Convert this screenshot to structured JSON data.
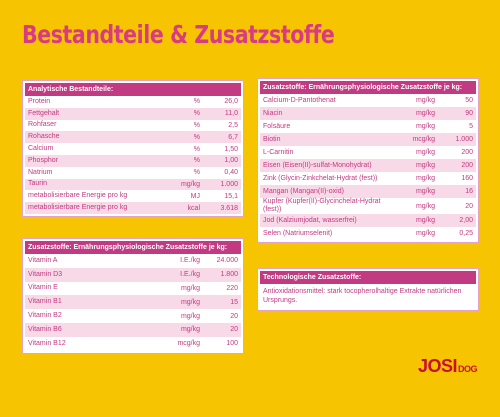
{
  "title": "Bestandteile & Zusatzstoffe",
  "tables": [
    {
      "header": "Analytische Bestandteile:",
      "rows": [
        [
          "Protein",
          "%",
          "26,0"
        ],
        [
          "Fettgehalt",
          "%",
          "11,0"
        ],
        [
          "Rohfaser",
          "%",
          "2,5"
        ],
        [
          "Rohasche",
          "%",
          "6,7"
        ],
        [
          "Calcium",
          "%",
          "1,50"
        ],
        [
          "Phosphor",
          "%",
          "1,00"
        ],
        [
          "Natrium",
          "%",
          "0,40"
        ],
        [
          "Taurin",
          "mg/kg",
          "1.000"
        ],
        [
          "metabolisierbare Energie pro kg",
          "MJ",
          "15,1"
        ],
        [
          "metabolisierbare Energie pro kg",
          "kcal",
          "3.618"
        ]
      ]
    },
    {
      "header": "Zusatzstoffe: Ernährungsphysiologische Zusatzstoffe je kg:",
      "rows": [
        [
          "Vitamin A",
          "I.E./kg",
          "24.000"
        ],
        [
          "Vitamin D3",
          "I.E./kg",
          "1.800"
        ],
        [
          "Vitamin E",
          "mg/kg",
          "220"
        ],
        [
          "Vitamin B1",
          "mg/kg",
          "15"
        ],
        [
          "Vitamin B2",
          "mg/kg",
          "20"
        ],
        [
          "Vitamin B6",
          "mg/kg",
          "20"
        ],
        [
          "Vitamin B12",
          "mcg/kg",
          "100"
        ]
      ]
    },
    {
      "header": "Zusatzstoffe: Ernährungsphysiologische Zusatzstoffe je kg:",
      "rows": [
        [
          "Calcium-D-Pantothenat",
          "mg/kg",
          "50"
        ],
        [
          "Niacin",
          "mg/kg",
          "90"
        ],
        [
          "Folsäure",
          "mg/kg",
          "5"
        ],
        [
          "Biotin",
          "mcg/kg",
          "1.000"
        ],
        [
          "L-Carnitin",
          "mg/kg",
          "200"
        ],
        [
          "Eisen (Eisen(II)-sulfat-Monohydrat)",
          "mg/kg",
          "200"
        ],
        [
          "Zink (Glycin-Zinkchelat-Hydrat (fest))",
          "mg/kg",
          "160"
        ],
        [
          "Mangan (Mangan(II)-oxid)",
          "mg/kg",
          "16"
        ],
        [
          "Kupfer (Kupfer(II)-Glycinchelat-Hydrat (fest))",
          "mg/kg",
          "20"
        ],
        [
          "Jod (Kalziumjodat, wasserfrei)",
          "mg/kg",
          "2,00"
        ],
        [
          "Selen (Natriumselenit)",
          "mg/kg",
          "0,25"
        ]
      ]
    }
  ],
  "tech": {
    "header": "Technologische Zusatzstoffe:",
    "text": "Antioxidationsmittel: stark tocopherolhaltige Extrakte natürlichen Ursprungs."
  },
  "logo": {
    "name": "JOSI",
    "sub": "DOG"
  }
}
